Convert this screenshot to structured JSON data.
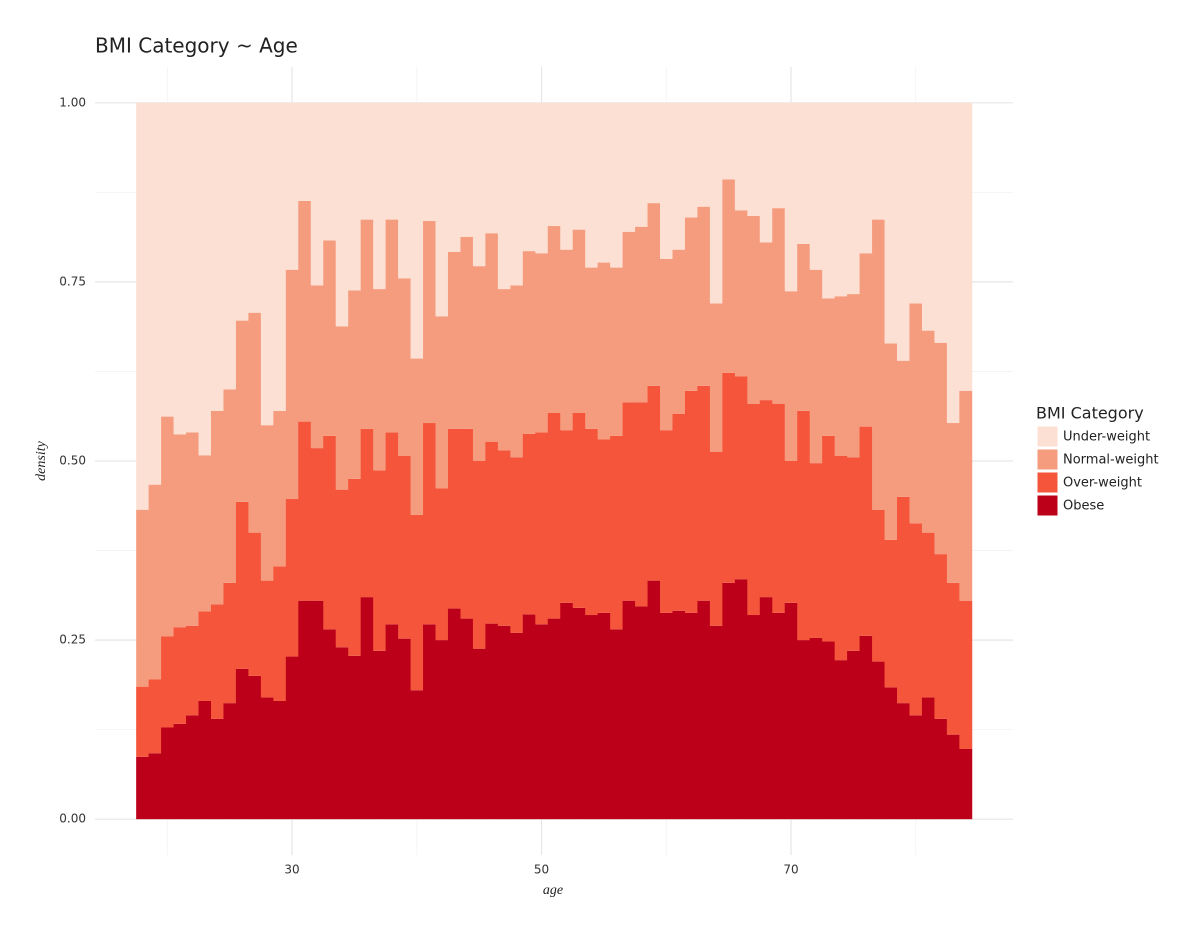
{
  "chart_data": {
    "type": "histogram",
    "title": "BMI Category ~ Age",
    "x_label": "age",
    "y_label": "density",
    "legend_title": "BMI Category",
    "legend_position": "right",
    "grid": true,
    "bins": [
      17.5,
      18.5,
      19.5,
      20.5,
      21.5,
      22.5,
      23.5,
      24.5,
      25.5,
      26.5,
      27.5,
      28.5,
      29.5,
      30.5,
      31.5,
      32.5,
      33.5,
      34.5,
      35.5,
      36.5,
      37.5,
      38.5,
      39.5,
      40.5,
      41.5,
      42.5,
      43.5,
      44.5,
      45.5,
      46.5,
      47.5,
      48.5,
      49.5,
      50.5,
      51.5,
      52.5,
      53.5,
      54.5,
      55.5,
      56.5,
      57.5,
      58.5,
      59.5,
      60.5,
      61.5,
      62.5,
      63.5,
      64.5,
      65.5,
      66.5,
      67.5,
      68.5,
      69.5,
      70.5,
      71.5,
      72.5,
      73.5,
      74.5,
      75.5,
      76.5,
      77.5,
      78.5,
      79.5,
      80.5,
      81.5,
      82.5,
      83.5,
      84.5
    ],
    "xlim": [
      14.2,
      87.8
    ],
    "xticks": [
      30,
      50,
      70
    ],
    "x_minor_grid": [
      20,
      40,
      60,
      80
    ],
    "ylim": [
      -0.05,
      1.05
    ],
    "yticks": [
      {
        "value": 0,
        "label": "0.00"
      },
      {
        "value": 0.25,
        "label": "0.25"
      },
      {
        "value": 0.5,
        "label": "0.50"
      },
      {
        "value": 0.75,
        "label": "0.75"
      },
      {
        "value": 1,
        "label": "1.00"
      }
    ],
    "y_minor_grid": [
      0.125,
      0.375,
      0.625,
      0.875
    ],
    "series": [
      {
        "name": "Under-weight",
        "color": "#fce0d3",
        "values": [
          0.568,
          0.533,
          0.438,
          0.463,
          0.46,
          0.492,
          0.43,
          0.4,
          0.304,
          0.293,
          0.45,
          0.43,
          0.233,
          0.137,
          0.255,
          0.192,
          0.312,
          0.262,
          0.163,
          0.26,
          0.163,
          0.245,
          0.357,
          0.165,
          0.298,
          0.208,
          0.187,
          0.228,
          0.182,
          0.26,
          0.255,
          0.207,
          0.21,
          0.172,
          0.205,
          0.177,
          0.23,
          0.223,
          0.23,
          0.18,
          0.173,
          0.14,
          0.218,
          0.205,
          0.16,
          0.145,
          0.28,
          0.107,
          0.15,
          0.158,
          0.195,
          0.147,
          0.263,
          0.197,
          0.233,
          0.273,
          0.27,
          0.267,
          0.21,
          0.163,
          0.336,
          0.36,
          0.28,
          0.318,
          0.335,
          0.447,
          0.402
        ]
      },
      {
        "name": "Normal-weight",
        "color": "#f69c7e",
        "values": [
          0.247,
          0.272,
          0.307,
          0.269,
          0.27,
          0.218,
          0.27,
          0.27,
          0.253,
          0.307,
          0.217,
          0.217,
          0.32,
          0.308,
          0.227,
          0.273,
          0.228,
          0.263,
          0.292,
          0.253,
          0.297,
          0.248,
          0.218,
          0.282,
          0.24,
          0.247,
          0.268,
          0.272,
          0.291,
          0.225,
          0.24,
          0.255,
          0.25,
          0.261,
          0.252,
          0.256,
          0.225,
          0.247,
          0.235,
          0.238,
          0.245,
          0.255,
          0.239,
          0.229,
          0.242,
          0.25,
          0.207,
          0.27,
          0.232,
          0.262,
          0.22,
          0.273,
          0.237,
          0.233,
          0.27,
          0.192,
          0.223,
          0.228,
          0.242,
          0.405,
          0.274,
          0.19,
          0.307,
          0.282,
          0.295,
          0.223,
          0.293
        ]
      },
      {
        "name": "Over-weight",
        "color": "#f4553b",
        "values": [
          0.098,
          0.103,
          0.127,
          0.135,
          0.125,
          0.125,
          0.16,
          0.168,
          0.233,
          0.2,
          0.163,
          0.188,
          0.22,
          0.25,
          0.213,
          0.27,
          0.22,
          0.247,
          0.235,
          0.252,
          0.268,
          0.255,
          0.245,
          0.281,
          0.212,
          0.251,
          0.265,
          0.262,
          0.254,
          0.245,
          0.245,
          0.252,
          0.268,
          0.287,
          0.241,
          0.272,
          0.26,
          0.242,
          0.27,
          0.277,
          0.285,
          0.272,
          0.255,
          0.275,
          0.31,
          0.3,
          0.243,
          0.293,
          0.283,
          0.295,
          0.275,
          0.292,
          0.198,
          0.32,
          0.244,
          0.287,
          0.285,
          0.27,
          0.292,
          0.212,
          0.206,
          0.288,
          0.268,
          0.23,
          0.23,
          0.212,
          0.207
        ]
      },
      {
        "name": "Obese",
        "color": "#bd0019",
        "values": [
          0.087,
          0.092,
          0.128,
          0.133,
          0.145,
          0.165,
          0.14,
          0.162,
          0.21,
          0.2,
          0.17,
          0.165,
          0.227,
          0.305,
          0.305,
          0.265,
          0.24,
          0.228,
          0.31,
          0.235,
          0.272,
          0.252,
          0.18,
          0.272,
          0.25,
          0.294,
          0.28,
          0.238,
          0.273,
          0.27,
          0.26,
          0.286,
          0.272,
          0.28,
          0.302,
          0.295,
          0.285,
          0.288,
          0.265,
          0.305,
          0.297,
          0.333,
          0.288,
          0.291,
          0.288,
          0.305,
          0.27,
          0.33,
          0.335,
          0.285,
          0.31,
          0.288,
          0.302,
          0.25,
          0.253,
          0.248,
          0.222,
          0.235,
          0.256,
          0.22,
          0.184,
          0.162,
          0.145,
          0.17,
          0.14,
          0.118,
          0.098
        ]
      }
    ]
  }
}
